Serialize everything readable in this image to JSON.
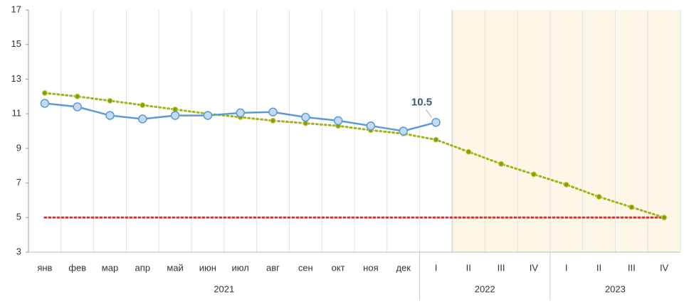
{
  "chart_data": {
    "type": "line",
    "categories": [
      "янв",
      "фев",
      "мар",
      "апр",
      "май",
      "июн",
      "июл",
      "авг",
      "сен",
      "окт",
      "ноя",
      "дек",
      "I",
      "II",
      "III",
      "IV",
      "I",
      "II",
      "III",
      "IV"
    ],
    "groups": [
      {
        "label": "2021",
        "from": 0,
        "to": 11
      },
      {
        "label": "2022",
        "from": 12,
        "to": 15
      },
      {
        "label": "2023",
        "from": 16,
        "to": 19
      }
    ],
    "shaded_range": [
      13,
      19
    ],
    "ylim": [
      3,
      17
    ],
    "yticks": [
      3,
      5,
      7,
      9,
      11,
      13,
      15,
      17
    ],
    "series": [
      {
        "color": "#5b9bd5",
        "style": "solid",
        "marker_fill": "#c5d9f1",
        "values": [
          11.6,
          11.4,
          10.9,
          10.7,
          10.9,
          10.9,
          11.05,
          11.1,
          10.8,
          10.6,
          10.3,
          10.0,
          10.5,
          null,
          null,
          null,
          null,
          null,
          null,
          null
        ],
        "labeled_point": 12
      },
      {
        "color": "#a3b21e",
        "style": "dotted",
        "marker_fill": "#8a9a10",
        "values": [
          12.2,
          12.0,
          11.75,
          11.5,
          11.25,
          11.0,
          10.8,
          10.6,
          10.45,
          10.3,
          10.05,
          9.85,
          9.5,
          8.8,
          8.1,
          7.5,
          6.9,
          6.2,
          5.6,
          5.0
        ]
      },
      {
        "color": "#e03030",
        "style": "dotted",
        "marker_fill": null,
        "values": [
          5,
          5,
          5,
          5,
          5,
          5,
          5,
          5,
          5,
          5,
          5,
          5,
          5,
          5,
          5,
          5,
          5,
          5,
          5,
          5
        ]
      }
    ]
  }
}
